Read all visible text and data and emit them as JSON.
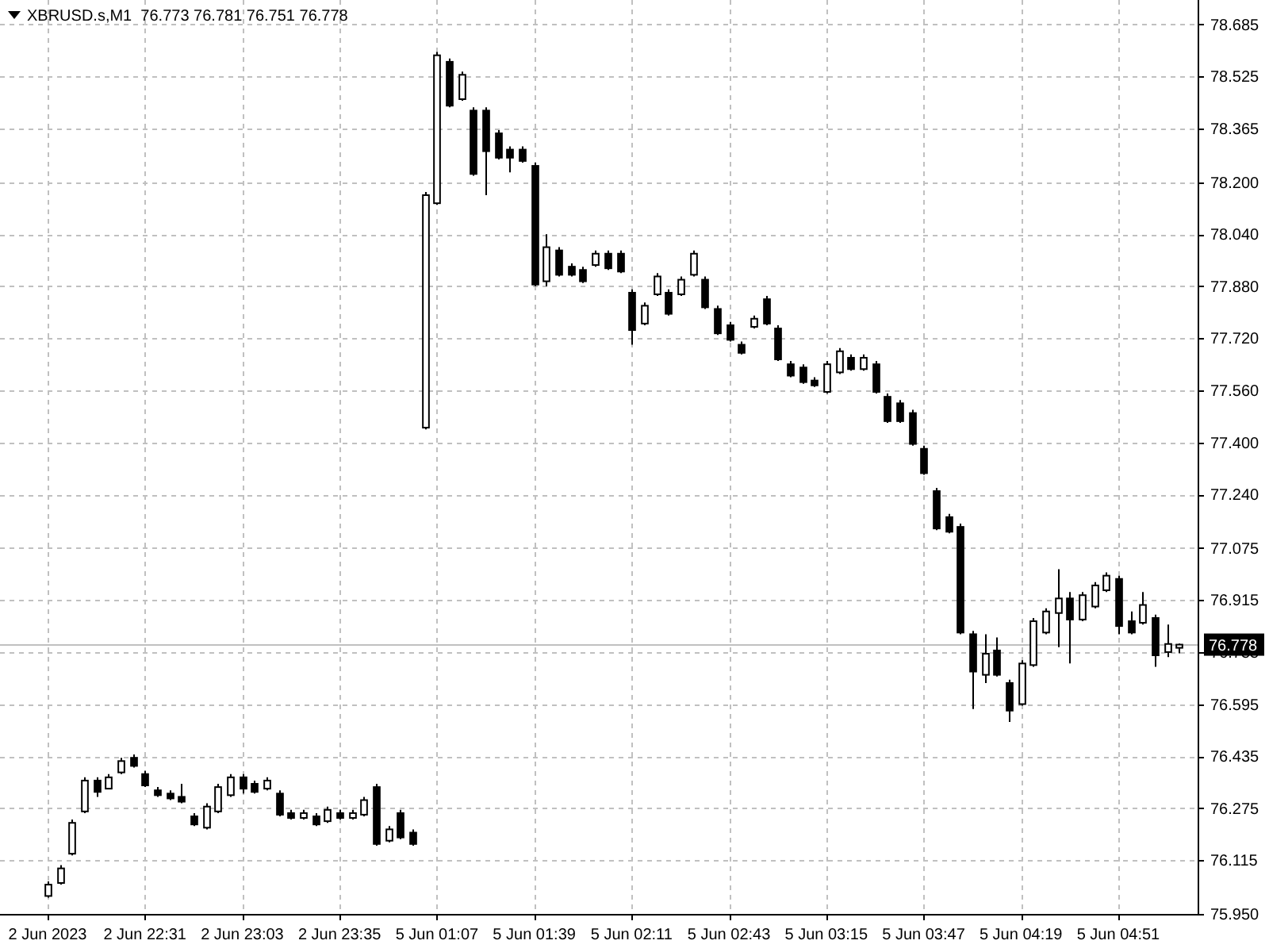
{
  "chart_data": {
    "type": "candlestick",
    "title": "XBRUSD.s,M1  76.773 76.781 76.751 76.778",
    "color": "#000000",
    "grid": true,
    "line_style": "dashed",
    "categories": [
      "2 Jun 2023",
      null,
      null,
      null,
      null,
      null,
      null,
      null,
      "2 Jun 22:31",
      null,
      null,
      null,
      null,
      null,
      null,
      null,
      "2 Jun 23:03",
      null,
      null,
      null,
      null,
      null,
      null,
      null,
      "2 Jun 23:35",
      null,
      null,
      null,
      null,
      null,
      null,
      null,
      "5 Jun 01:07",
      null,
      null,
      null,
      null,
      null,
      null,
      null,
      "5 Jun 01:39",
      null,
      null,
      null,
      null,
      null,
      null,
      null,
      "5 Jun 02:11",
      null,
      null,
      null,
      null,
      null,
      null,
      null,
      "5 Jun 02:43",
      null,
      null,
      null,
      null,
      null,
      null,
      null,
      "5 Jun 03:15",
      null,
      null,
      null,
      null,
      null,
      null,
      null,
      "5 Jun 03:47",
      null,
      null,
      null,
      null,
      null,
      null,
      null,
      "5 Jun 04:19",
      null,
      null,
      null,
      null,
      null,
      null,
      null,
      "5 Jun 04:51",
      null,
      null,
      null,
      null,
      null
    ],
    "ohlc": [
      [
        76.01,
        76.05,
        76.0,
        76.04
      ],
      [
        76.05,
        76.1,
        76.04,
        76.09
      ],
      [
        76.14,
        76.24,
        76.13,
        76.23
      ],
      [
        76.27,
        76.37,
        76.26,
        76.36
      ],
      [
        76.36,
        76.37,
        76.31,
        76.33
      ],
      [
        76.34,
        76.38,
        76.34,
        76.37
      ],
      [
        76.39,
        76.43,
        76.38,
        76.42
      ],
      [
        76.43,
        76.44,
        76.4,
        76.41
      ],
      [
        76.38,
        76.39,
        76.34,
        76.35
      ],
      [
        76.33,
        76.34,
        76.31,
        76.32
      ],
      [
        76.32,
        76.33,
        76.3,
        76.31
      ],
      [
        76.31,
        76.35,
        76.29,
        76.3
      ],
      [
        76.25,
        76.26,
        76.22,
        76.23
      ],
      [
        76.22,
        76.29,
        76.21,
        76.28
      ],
      [
        76.27,
        76.35,
        76.26,
        76.34
      ],
      [
        76.32,
        76.38,
        76.31,
        76.37
      ],
      [
        76.37,
        76.38,
        76.32,
        76.34
      ],
      [
        76.35,
        76.36,
        76.32,
        76.33
      ],
      [
        76.34,
        76.37,
        76.33,
        76.36
      ],
      [
        76.32,
        76.33,
        76.25,
        76.26
      ],
      [
        76.26,
        76.27,
        76.24,
        76.25
      ],
      [
        76.25,
        76.27,
        76.24,
        76.26
      ],
      [
        76.25,
        76.26,
        76.22,
        76.23
      ],
      [
        76.24,
        76.28,
        76.23,
        76.27
      ],
      [
        76.26,
        76.27,
        76.24,
        76.25
      ],
      [
        76.25,
        76.27,
        76.24,
        76.26
      ],
      [
        76.26,
        76.31,
        76.25,
        76.3
      ],
      [
        76.34,
        76.35,
        76.16,
        76.17
      ],
      [
        76.18,
        76.22,
        76.17,
        76.21
      ],
      [
        76.26,
        76.27,
        76.18,
        76.19
      ],
      [
        76.2,
        76.21,
        76.16,
        76.17
      ],
      [
        77.45,
        78.17,
        77.44,
        78.16
      ],
      [
        78.14,
        78.6,
        78.13,
        78.59
      ],
      [
        78.57,
        78.58,
        78.43,
        78.44
      ],
      [
        78.46,
        78.54,
        78.45,
        78.53
      ],
      [
        78.42,
        78.43,
        78.22,
        78.23
      ],
      [
        78.42,
        78.43,
        78.16,
        78.3
      ],
      [
        78.35,
        78.36,
        78.27,
        78.28
      ],
      [
        78.3,
        78.31,
        78.23,
        78.28
      ],
      [
        78.3,
        78.31,
        78.26,
        78.27
      ],
      [
        78.25,
        78.26,
        77.88,
        77.89
      ],
      [
        77.9,
        78.04,
        77.88,
        78.0
      ],
      [
        77.99,
        78.0,
        77.91,
        77.92
      ],
      [
        77.94,
        77.95,
        77.91,
        77.92
      ],
      [
        77.93,
        77.94,
        77.89,
        77.9
      ],
      [
        77.95,
        77.99,
        77.94,
        77.98
      ],
      [
        77.98,
        77.99,
        77.93,
        77.94
      ],
      [
        77.98,
        77.99,
        77.92,
        77.93
      ],
      [
        77.86,
        77.87,
        77.7,
        77.75
      ],
      [
        77.77,
        77.83,
        77.76,
        77.82
      ],
      [
        77.86,
        77.92,
        77.85,
        77.91
      ],
      [
        77.86,
        77.87,
        77.79,
        77.8
      ],
      [
        77.86,
        77.91,
        77.85,
        77.9
      ],
      [
        77.92,
        77.99,
        77.91,
        77.98
      ],
      [
        77.9,
        77.91,
        77.81,
        77.82
      ],
      [
        77.81,
        77.82,
        77.73,
        77.74
      ],
      [
        77.76,
        77.77,
        77.71,
        77.72
      ],
      [
        77.7,
        77.71,
        77.67,
        77.68
      ],
      [
        77.76,
        77.79,
        77.75,
        77.78
      ],
      [
        77.84,
        77.85,
        77.76,
        77.77
      ],
      [
        77.75,
        77.76,
        77.65,
        77.66
      ],
      [
        77.64,
        77.65,
        77.6,
        77.61
      ],
      [
        77.63,
        77.64,
        77.58,
        77.59
      ],
      [
        77.59,
        77.6,
        77.57,
        77.58
      ],
      [
        77.56,
        77.65,
        77.55,
        77.64
      ],
      [
        77.62,
        77.69,
        77.61,
        77.68
      ],
      [
        77.66,
        77.67,
        77.62,
        77.63
      ],
      [
        77.63,
        77.67,
        77.62,
        77.66
      ],
      [
        77.64,
        77.65,
        77.55,
        77.56
      ],
      [
        77.54,
        77.55,
        77.46,
        77.47
      ],
      [
        77.52,
        77.53,
        77.46,
        77.47
      ],
      [
        77.49,
        77.5,
        77.39,
        77.4
      ],
      [
        77.38,
        77.39,
        77.3,
        77.31
      ],
      [
        77.25,
        77.26,
        77.13,
        77.14
      ],
      [
        77.17,
        77.18,
        77.12,
        77.13
      ],
      [
        77.14,
        77.15,
        76.81,
        76.82
      ],
      [
        76.81,
        76.82,
        76.58,
        76.7
      ],
      [
        76.69,
        76.81,
        76.66,
        76.75
      ],
      [
        76.76,
        76.8,
        76.68,
        76.69
      ],
      [
        76.66,
        76.67,
        76.54,
        76.58
      ],
      [
        76.6,
        76.73,
        76.59,
        76.72
      ],
      [
        76.72,
        76.86,
        76.71,
        76.85
      ],
      [
        76.82,
        76.89,
        76.81,
        76.88
      ],
      [
        76.88,
        77.01,
        76.77,
        76.92
      ],
      [
        76.92,
        76.94,
        76.72,
        76.86
      ],
      [
        76.86,
        76.94,
        76.85,
        76.93
      ],
      [
        76.9,
        76.97,
        76.89,
        76.96
      ],
      [
        76.95,
        77.0,
        76.94,
        76.99
      ],
      [
        76.98,
        76.99,
        76.81,
        76.84
      ],
      [
        76.85,
        76.88,
        76.81,
        76.82
      ],
      [
        76.85,
        76.94,
        76.84,
        76.9
      ],
      [
        76.86,
        76.87,
        76.71,
        76.75
      ],
      [
        76.76,
        76.84,
        76.74,
        76.78
      ],
      [
        76.773,
        76.781,
        76.751,
        76.778
      ]
    ],
    "ylim": [
      75.95,
      78.76
    ],
    "yticks": [
      78.685,
      78.525,
      78.365,
      {
        "value": 78.2,
        "label": "78.200"
      },
      {
        "value": 78.04,
        "label": "78.040"
      },
      {
        "value": 77.88,
        "label": "77.880"
      },
      {
        "value": 77.72,
        "label": "77.720"
      },
      {
        "value": 77.56,
        "label": "77.560"
      },
      {
        "value": 77.4,
        "label": "77.400"
      },
      {
        "value": 77.24,
        "label": "77.240"
      },
      77.075,
      76.915,
      76.755,
      76.595,
      76.435,
      76.275,
      76.115,
      {
        "value": 75.95,
        "label": "75.950"
      }
    ],
    "ref_lines": [
      {
        "axis": "y",
        "value": 76.778,
        "label": "76.778",
        "color": "#c0c0c0"
      }
    ]
  }
}
